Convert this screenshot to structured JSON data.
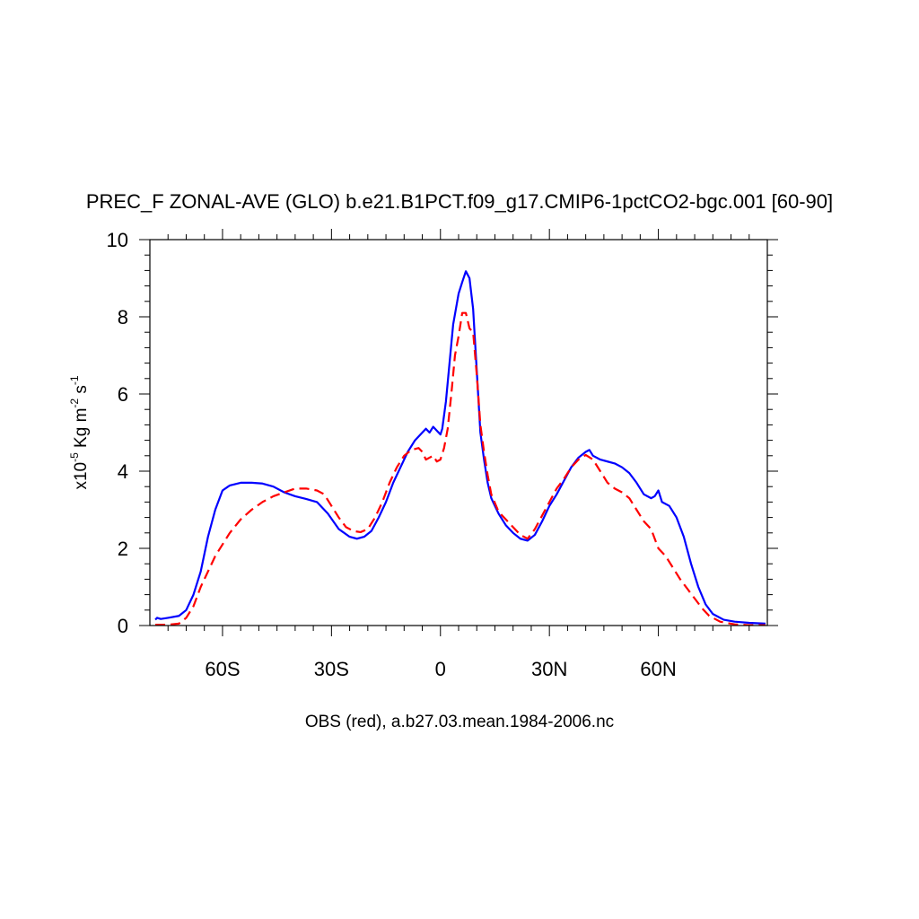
{
  "chart_data": {
    "type": "line",
    "title": "PREC_F ZONAL-AVE (GLO) b.e21.B1PCT.f09_g17.CMIP6-1pctCO2-bgc.001 [60-90]",
    "xlabel": "OBS (red), a.b27.03.mean.1984-2006.nc",
    "ylabel": {
      "prefix": "x10",
      "exponent": "-5",
      "units_a": " Kg m",
      "exponent_b": "-2",
      "units_b": " s",
      "exponent_c": "-1"
    },
    "xlim": [
      -80,
      90
    ],
    "ylim": [
      0,
      10
    ],
    "x_ticks": [
      {
        "value": -60,
        "label": "60S"
      },
      {
        "value": -30,
        "label": "30S"
      },
      {
        "value": 0,
        "label": "0"
      },
      {
        "value": 30,
        "label": "30N"
      },
      {
        "value": 60,
        "label": "60N"
      }
    ],
    "y_ticks": [
      {
        "value": 0,
        "label": "0"
      },
      {
        "value": 2,
        "label": "2"
      },
      {
        "value": 4,
        "label": "4"
      },
      {
        "value": 6,
        "label": "6"
      },
      {
        "value": 8,
        "label": "8"
      },
      {
        "value": 10,
        "label": "10"
      }
    ],
    "grid": false,
    "series": [
      {
        "color": "#0000ff",
        "dash": "solid",
        "points": [
          [
            -78.5,
            0.15
          ],
          [
            -78,
            0.2
          ],
          [
            -77,
            0.17
          ],
          [
            -75,
            0.2
          ],
          [
            -72,
            0.25
          ],
          [
            -70,
            0.4
          ],
          [
            -68,
            0.8
          ],
          [
            -66,
            1.4
          ],
          [
            -64,
            2.3
          ],
          [
            -62,
            3.0
          ],
          [
            -60,
            3.5
          ],
          [
            -58,
            3.63
          ],
          [
            -55,
            3.7
          ],
          [
            -52,
            3.7
          ],
          [
            -49,
            3.68
          ],
          [
            -46,
            3.6
          ],
          [
            -43,
            3.45
          ],
          [
            -40,
            3.35
          ],
          [
            -37,
            3.28
          ],
          [
            -34,
            3.2
          ],
          [
            -31,
            2.9
          ],
          [
            -28,
            2.5
          ],
          [
            -25,
            2.3
          ],
          [
            -23,
            2.25
          ],
          [
            -21,
            2.3
          ],
          [
            -19,
            2.45
          ],
          [
            -17,
            2.8
          ],
          [
            -15,
            3.2
          ],
          [
            -13,
            3.7
          ],
          [
            -11,
            4.1
          ],
          [
            -9,
            4.5
          ],
          [
            -7,
            4.8
          ],
          [
            -5,
            5.0
          ],
          [
            -4,
            5.1
          ],
          [
            -3,
            5.0
          ],
          [
            -2,
            5.15
          ],
          [
            -1,
            5.05
          ],
          [
            0,
            4.95
          ],
          [
            0.5,
            5.1
          ],
          [
            1.5,
            5.8
          ],
          [
            2.5,
            6.8
          ],
          [
            3.5,
            7.8
          ],
          [
            5,
            8.6
          ],
          [
            6,
            8.9
          ],
          [
            7,
            9.18
          ],
          [
            8,
            9.0
          ],
          [
            9,
            8.2
          ],
          [
            10,
            6.6
          ],
          [
            11,
            5.0
          ],
          [
            12,
            4.3
          ],
          [
            13,
            3.7
          ],
          [
            14,
            3.3
          ],
          [
            16,
            2.9
          ],
          [
            18,
            2.6
          ],
          [
            20,
            2.4
          ],
          [
            22,
            2.25
          ],
          [
            24,
            2.2
          ],
          [
            26,
            2.35
          ],
          [
            28,
            2.7
          ],
          [
            30,
            3.1
          ],
          [
            32,
            3.4
          ],
          [
            34,
            3.75
          ],
          [
            36,
            4.1
          ],
          [
            38,
            4.35
          ],
          [
            40,
            4.5
          ],
          [
            41,
            4.55
          ],
          [
            42,
            4.4
          ],
          [
            44,
            4.3
          ],
          [
            46,
            4.25
          ],
          [
            48,
            4.2
          ],
          [
            50,
            4.1
          ],
          [
            52,
            3.95
          ],
          [
            54,
            3.7
          ],
          [
            56,
            3.4
          ],
          [
            58,
            3.3
          ],
          [
            59,
            3.35
          ],
          [
            60,
            3.5
          ],
          [
            61,
            3.2
          ],
          [
            63,
            3.1
          ],
          [
            65,
            2.8
          ],
          [
            67,
            2.3
          ],
          [
            69,
            1.6
          ],
          [
            71,
            1.0
          ],
          [
            73,
            0.55
          ],
          [
            75,
            0.3
          ],
          [
            78,
            0.15
          ],
          [
            81,
            0.1
          ],
          [
            85,
            0.07
          ],
          [
            89.5,
            0.05
          ]
        ]
      },
      {
        "color": "#ff0000",
        "dash": "dashed",
        "points": [
          [
            -78.5,
            0.02
          ],
          [
            -75,
            0.02
          ],
          [
            -72,
            0.05
          ],
          [
            -70,
            0.2
          ],
          [
            -68,
            0.5
          ],
          [
            -66,
            1.0
          ],
          [
            -64,
            1.4
          ],
          [
            -62,
            1.8
          ],
          [
            -60,
            2.1
          ],
          [
            -58,
            2.4
          ],
          [
            -55,
            2.75
          ],
          [
            -52,
            3.0
          ],
          [
            -49,
            3.2
          ],
          [
            -46,
            3.35
          ],
          [
            -43,
            3.45
          ],
          [
            -40,
            3.55
          ],
          [
            -37,
            3.55
          ],
          [
            -34,
            3.5
          ],
          [
            -32,
            3.4
          ],
          [
            -30,
            3.1
          ],
          [
            -28,
            2.8
          ],
          [
            -26,
            2.55
          ],
          [
            -24,
            2.45
          ],
          [
            -22,
            2.42
          ],
          [
            -20,
            2.5
          ],
          [
            -18,
            2.8
          ],
          [
            -16,
            3.2
          ],
          [
            -14,
            3.7
          ],
          [
            -12,
            4.1
          ],
          [
            -10,
            4.4
          ],
          [
            -8,
            4.55
          ],
          [
            -6,
            4.6
          ],
          [
            -5,
            4.5
          ],
          [
            -4,
            4.3
          ],
          [
            -3,
            4.35
          ],
          [
            -2,
            4.4
          ],
          [
            -1,
            4.25
          ],
          [
            0,
            4.3
          ],
          [
            1,
            4.6
          ],
          [
            2,
            5.1
          ],
          [
            3,
            6.0
          ],
          [
            4,
            7.0
          ],
          [
            5,
            7.5
          ],
          [
            6,
            8.1
          ],
          [
            7,
            8.1
          ],
          [
            8,
            7.7
          ],
          [
            9,
            7.6
          ],
          [
            10,
            6.5
          ],
          [
            11,
            5.2
          ],
          [
            12,
            4.5
          ],
          [
            13,
            3.9
          ],
          [
            14,
            3.4
          ],
          [
            16,
            2.95
          ],
          [
            18,
            2.75
          ],
          [
            20,
            2.55
          ],
          [
            22,
            2.35
          ],
          [
            24,
            2.25
          ],
          [
            26,
            2.5
          ],
          [
            28,
            2.85
          ],
          [
            30,
            3.2
          ],
          [
            32,
            3.55
          ],
          [
            34,
            3.8
          ],
          [
            36,
            4.1
          ],
          [
            38,
            4.3
          ],
          [
            40,
            4.42
          ],
          [
            42,
            4.3
          ],
          [
            44,
            4.0
          ],
          [
            46,
            3.7
          ],
          [
            48,
            3.55
          ],
          [
            50,
            3.45
          ],
          [
            52,
            3.3
          ],
          [
            54,
            3.0
          ],
          [
            56,
            2.7
          ],
          [
            58,
            2.5
          ],
          [
            60,
            2.0
          ],
          [
            62,
            1.8
          ],
          [
            64,
            1.5
          ],
          [
            66,
            1.2
          ],
          [
            68,
            0.95
          ],
          [
            70,
            0.7
          ],
          [
            72,
            0.45
          ],
          [
            74,
            0.25
          ],
          [
            77,
            0.1
          ],
          [
            81,
            0.03
          ],
          [
            85,
            0.01
          ],
          [
            89.5,
            0.01
          ]
        ]
      }
    ]
  }
}
